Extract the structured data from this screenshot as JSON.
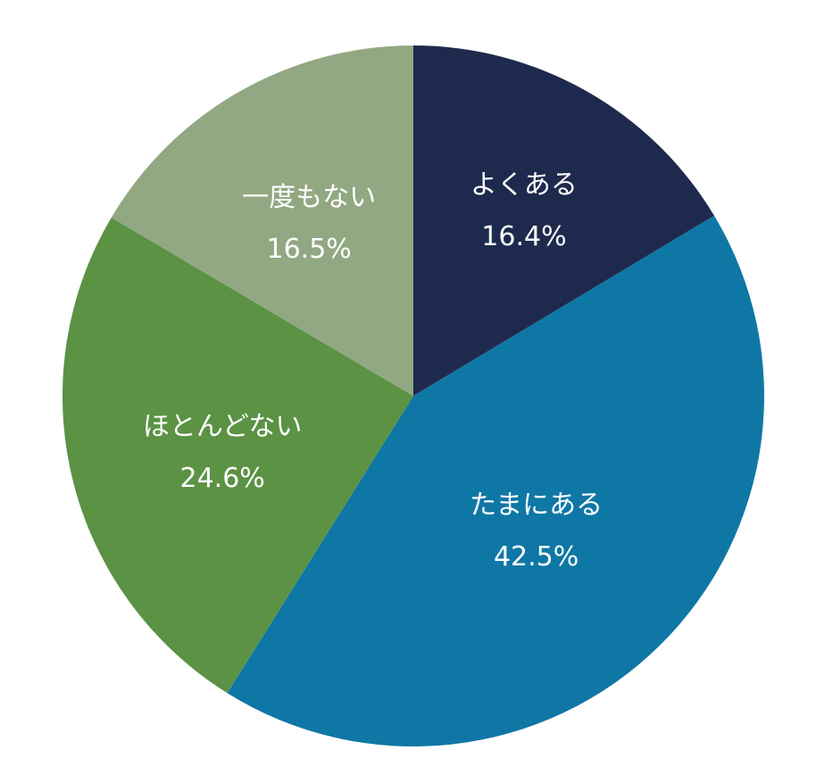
{
  "chart_data": {
    "type": "pie",
    "start": "top",
    "direction": "clockwise",
    "unit": "%",
    "slices": [
      {
        "label": "よくある",
        "value": 16.4,
        "color": "#1e2a4d"
      },
      {
        "label": "たまにある",
        "value": 42.5,
        "color": "#0f77a5"
      },
      {
        "label": "ほとんどない",
        "value": 24.6,
        "color": "#5b9244"
      },
      {
        "label": "一度もない",
        "value": 16.5,
        "color": "#92a882"
      }
    ]
  }
}
